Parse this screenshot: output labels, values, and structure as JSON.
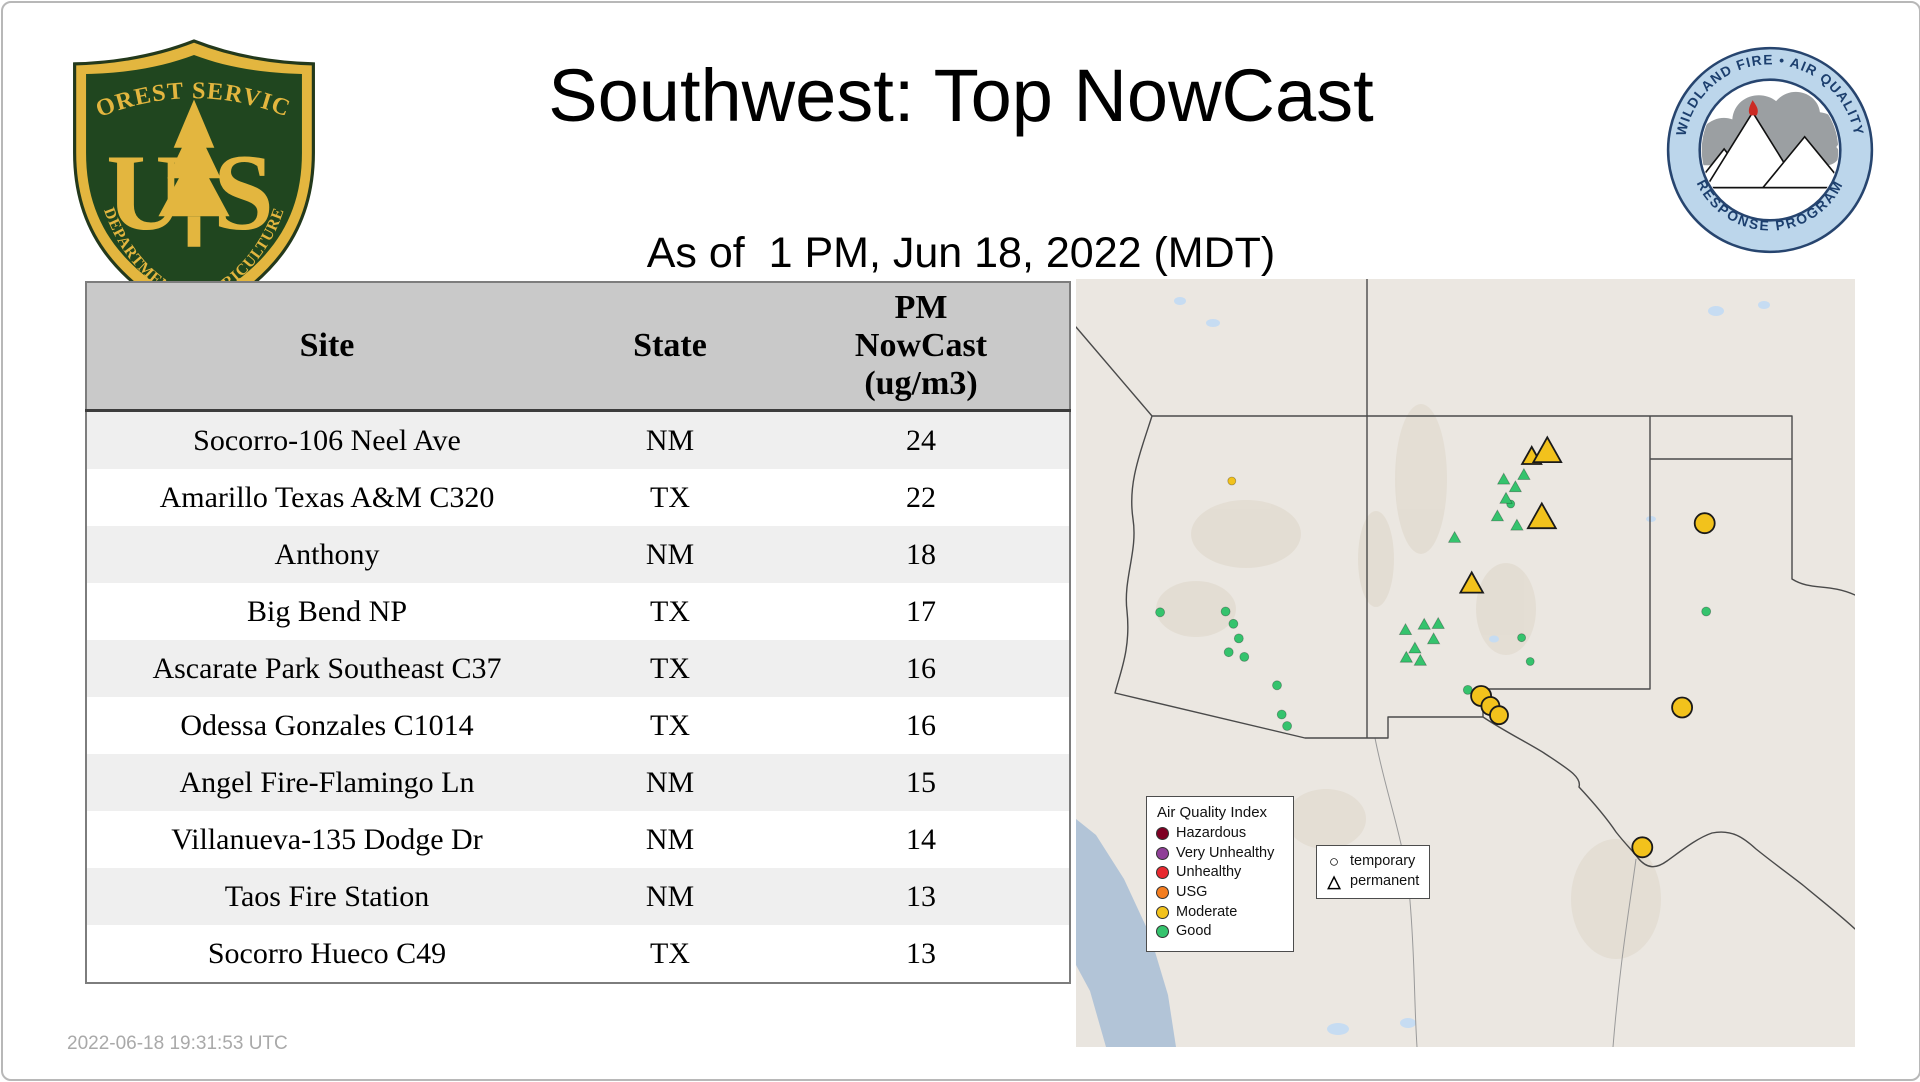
{
  "header": {
    "title": "Southwest: Top NowCast",
    "subtitle": "As of  1 PM, Jun 18, 2022 (MDT)"
  },
  "logos": {
    "usfs": {
      "name": "US Forest Service shield",
      "arc_top": "FOREST SERVICE",
      "letter_left": "U",
      "letter_right": "S",
      "arc_bottom": "DEPARTMENT OF AGRICULTURE"
    },
    "wfaqrp": {
      "name": "Wildland Fire Air Quality Response Program seal",
      "arc_top": "WILDLAND FIRE • AIR QUALITY",
      "arc_bottom": "RESPONSE PROGRAM"
    }
  },
  "table": {
    "columns": [
      "Site",
      "State",
      "PM NowCast (ug/m3)"
    ],
    "rows": [
      [
        "Socorro-106 Neel Ave",
        "NM",
        "24"
      ],
      [
        "Amarillo Texas A&M C320",
        "TX",
        "22"
      ],
      [
        "Anthony",
        "NM",
        "18"
      ],
      [
        "Big Bend NP",
        "TX",
        "17"
      ],
      [
        "Ascarate Park Southeast C37",
        "TX",
        "16"
      ],
      [
        "Odessa Gonzales C1014",
        "TX",
        "16"
      ],
      [
        "Angel Fire-Flamingo Ln",
        "NM",
        "15"
      ],
      [
        "Villanueva-135 Dodge Dr",
        "NM",
        "14"
      ],
      [
        "Taos Fire Station",
        "NM",
        "13"
      ],
      [
        "Socorro Hueco C49",
        "TX",
        "13"
      ]
    ]
  },
  "map": {
    "aqi_colors": {
      "hazardous": "#7e0023",
      "very_unhealthy": "#8f3f97",
      "unhealthy": "#e8292f",
      "usg": "#f47d20",
      "moderate": "#f2c21c",
      "good": "#35c36d"
    },
    "legend": {
      "title": "Air Quality Index",
      "items": [
        {
          "label": "Hazardous",
          "color": "#7e0023"
        },
        {
          "label": "Very Unhealthy",
          "color": "#8f3f97"
        },
        {
          "label": "Unhealthy",
          "color": "#e8292f"
        },
        {
          "label": "USG",
          "color": "#f47d20"
        },
        {
          "label": "Moderate",
          "color": "#f2c21c"
        },
        {
          "label": "Good",
          "color": "#35c36d"
        }
      ]
    },
    "shape_legend": [
      {
        "label": "temporary",
        "shape": "circle"
      },
      {
        "label": "permanent",
        "shape": "triangle"
      }
    ],
    "markers": [
      {
        "shape": "dot",
        "aqi": "good",
        "x": 10.8,
        "y": 43.4,
        "r": 4.5
      },
      {
        "shape": "dot",
        "aqi": "good",
        "x": 19.2,
        "y": 43.3,
        "r": 4.5
      },
      {
        "shape": "dot",
        "aqi": "good",
        "x": 20.2,
        "y": 44.9,
        "r": 4.5
      },
      {
        "shape": "dot",
        "aqi": "good",
        "x": 20.9,
        "y": 46.8,
        "r": 4.5
      },
      {
        "shape": "dot",
        "aqi": "good",
        "x": 19.6,
        "y": 48.6,
        "r": 4.5
      },
      {
        "shape": "dot",
        "aqi": "good",
        "x": 21.6,
        "y": 49.2,
        "r": 4.5
      },
      {
        "shape": "dot",
        "aqi": "good",
        "x": 25.8,
        "y": 52.9,
        "r": 4.5
      },
      {
        "shape": "dot",
        "aqi": "good",
        "x": 26.4,
        "y": 56.7,
        "r": 4.5
      },
      {
        "shape": "dot",
        "aqi": "good",
        "x": 27.1,
        "y": 58.2,
        "r": 4.5
      },
      {
        "shape": "dot",
        "aqi": "good",
        "x": 50.3,
        "y": 53.5,
        "r": 4.5
      },
      {
        "shape": "dot",
        "aqi": "good",
        "x": 57.2,
        "y": 46.7,
        "r": 4
      },
      {
        "shape": "dot",
        "aqi": "good",
        "x": 58.3,
        "y": 49.8,
        "r": 4
      },
      {
        "shape": "dot",
        "aqi": "good",
        "x": 55.8,
        "y": 29.3,
        "r": 4
      },
      {
        "shape": "dot",
        "aqi": "good",
        "x": 80.9,
        "y": 43.3,
        "r": 4.5
      },
      {
        "shape": "triangle",
        "aqi": "good",
        "x": 54.9,
        "y": 26.2,
        "s": 7
      },
      {
        "shape": "triangle",
        "aqi": "good",
        "x": 56.4,
        "y": 27.2,
        "s": 7
      },
      {
        "shape": "triangle",
        "aqi": "good",
        "x": 57.5,
        "y": 25.6,
        "s": 7
      },
      {
        "shape": "triangle",
        "aqi": "good",
        "x": 55.2,
        "y": 28.7,
        "s": 7
      },
      {
        "shape": "triangle",
        "aqi": "good",
        "x": 54.1,
        "y": 31.0,
        "s": 7
      },
      {
        "shape": "triangle",
        "aqi": "good",
        "x": 48.6,
        "y": 33.8,
        "s": 7
      },
      {
        "shape": "triangle",
        "aqi": "good",
        "x": 56.6,
        "y": 32.2,
        "s": 7
      },
      {
        "shape": "triangle",
        "aqi": "good",
        "x": 42.3,
        "y": 45.8,
        "s": 7
      },
      {
        "shape": "triangle",
        "aqi": "good",
        "x": 44.7,
        "y": 45.1,
        "s": 7
      },
      {
        "shape": "triangle",
        "aqi": "good",
        "x": 46.5,
        "y": 45.0,
        "s": 7
      },
      {
        "shape": "triangle",
        "aqi": "good",
        "x": 43.5,
        "y": 48.2,
        "s": 7
      },
      {
        "shape": "triangle",
        "aqi": "good",
        "x": 45.9,
        "y": 47.0,
        "s": 7
      },
      {
        "shape": "triangle",
        "aqi": "good",
        "x": 44.2,
        "y": 49.8,
        "s": 7
      },
      {
        "shape": "triangle",
        "aqi": "good",
        "x": 42.4,
        "y": 49.4,
        "s": 7
      },
      {
        "shape": "dot",
        "aqi": "moderate",
        "x": 20.0,
        "y": 26.3,
        "r": 4
      },
      {
        "shape": "triangle",
        "aqi": "moderate",
        "x": 58.5,
        "y": 23.3,
        "s": 11
      },
      {
        "shape": "triangle",
        "aqi": "moderate",
        "x": 60.5,
        "y": 22.7,
        "s": 16
      },
      {
        "shape": "triangle",
        "aqi": "moderate",
        "x": 59.8,
        "y": 31.3,
        "s": 16
      },
      {
        "shape": "triangle",
        "aqi": "moderate",
        "x": 50.8,
        "y": 39.9,
        "s": 13
      },
      {
        "shape": "circle",
        "aqi": "moderate",
        "x": 80.7,
        "y": 31.8,
        "r": 10
      },
      {
        "shape": "circle",
        "aqi": "moderate",
        "x": 77.8,
        "y": 55.8,
        "r": 10
      },
      {
        "shape": "circle",
        "aqi": "moderate",
        "x": 52.0,
        "y": 54.3,
        "r": 10
      },
      {
        "shape": "circle",
        "aqi": "moderate",
        "x": 53.2,
        "y": 55.6,
        "r": 9
      },
      {
        "shape": "circle",
        "aqi": "moderate",
        "x": 54.3,
        "y": 56.8,
        "r": 9
      },
      {
        "shape": "circle",
        "aqi": "moderate",
        "x": 72.7,
        "y": 74.0,
        "r": 10
      }
    ]
  },
  "footer": {
    "timestamp": "2022-06-18 19:31:53 UTC"
  },
  "chart_data": {
    "type": "table",
    "title": "Southwest: Top NowCast",
    "subtitle": "As of 1 PM, Jun 18, 2022 (MDT)",
    "columns": [
      "Site",
      "State",
      "PM NowCast (ug/m3)"
    ],
    "rows": [
      [
        "Socorro-106 Neel Ave",
        "NM",
        24
      ],
      [
        "Amarillo Texas A&M C320",
        "TX",
        22
      ],
      [
        "Anthony",
        "NM",
        18
      ],
      [
        "Big Bend NP",
        "TX",
        17
      ],
      [
        "Ascarate Park Southeast C37",
        "TX",
        16
      ],
      [
        "Odessa Gonzales C1014",
        "TX",
        16
      ],
      [
        "Angel Fire-Flamingo Ln",
        "NM",
        15
      ],
      [
        "Villanueva-135 Dodge Dr",
        "NM",
        14
      ],
      [
        "Taos Fire Station",
        "NM",
        13
      ],
      [
        "Socorro Hueco C49",
        "TX",
        13
      ]
    ],
    "map_legend": [
      "Hazardous",
      "Very Unhealthy",
      "Unhealthy",
      "USG",
      "Moderate",
      "Good"
    ],
    "marker_shapes": {
      "circle": "temporary",
      "triangle": "permanent"
    }
  }
}
